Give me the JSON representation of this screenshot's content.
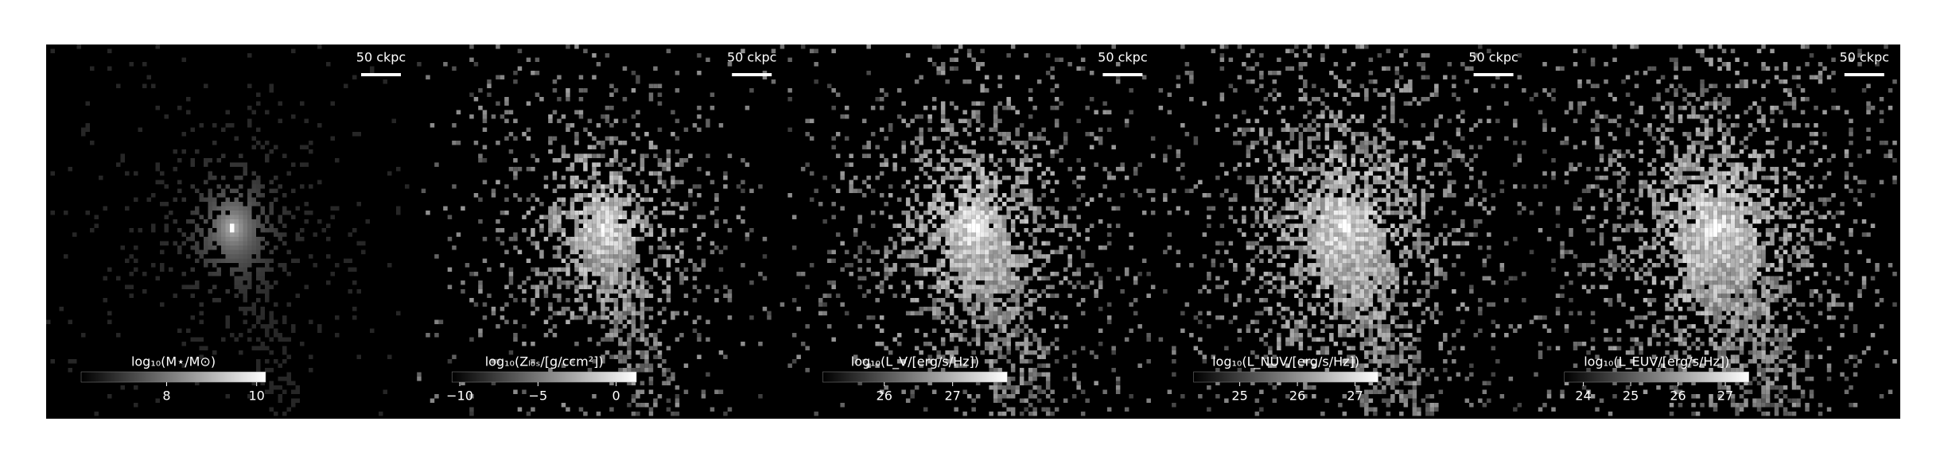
{
  "chart_data": [
    {
      "type": "image",
      "colorbar_label": "log₁₀(M⋆/M⊙)",
      "clim": [
        6.1,
        10.2
      ],
      "cticks": [
        8,
        10
      ],
      "scale_label": "50 ckpc"
    },
    {
      "type": "image",
      "colorbar_label": "log₁₀(Zₗₒₛ/[g/ccm²])",
      "clim": [
        -10.5,
        1.3
      ],
      "cticks": [
        {
          "value": -10,
          "label": "−10"
        },
        {
          "value": -5,
          "label": "−5"
        },
        0
      ],
      "scale_label": "50 ckpc"
    },
    {
      "type": "image",
      "colorbar_label": "log₁₀(L_V/[erg/s/Hz])",
      "clim": [
        25.1,
        27.8
      ],
      "cticks": [
        26,
        27
      ],
      "scale_label": "50 ckpc"
    },
    {
      "type": "image",
      "colorbar_label": "log₁₀(L_NUV/[erg/s/Hz])",
      "clim": [
        24.2,
        27.4
      ],
      "cticks": [
        25,
        26,
        27
      ],
      "scale_label": "50 ckpc"
    },
    {
      "type": "image",
      "colorbar_label": "log₁₀(L_EUV/[erg/s/Hz])",
      "clim": [
        23.6,
        27.5
      ],
      "cticks": [
        24,
        25,
        26,
        27
      ],
      "scale_label": "50 ckpc"
    }
  ]
}
